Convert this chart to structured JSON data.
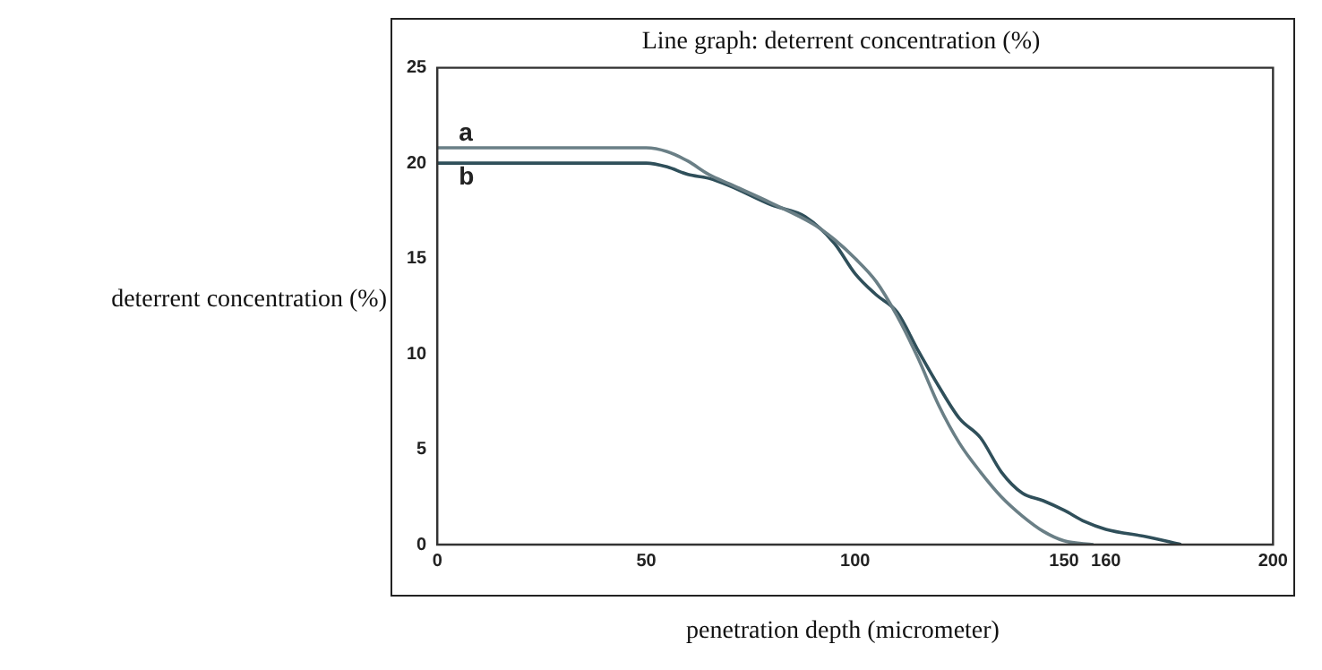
{
  "chart_data": {
    "type": "line",
    "title": "Line graph: deterrent concentration (%)",
    "xlabel": "penetration depth (micrometer)",
    "ylabel": "deterrent concentration (%)",
    "xlim": [
      0,
      200
    ],
    "xticks": [
      0,
      50,
      100,
      150,
      160,
      200
    ],
    "ylim": [
      0,
      25
    ],
    "yticks": [
      0,
      5,
      10,
      15,
      20,
      25
    ],
    "grid": false,
    "legend": false,
    "marker": "none",
    "line_style": "solid",
    "series": [
      {
        "name": "a",
        "color": "#6a7f86",
        "x": [
          0,
          45,
          50,
          55,
          60,
          65,
          70,
          80,
          90,
          95,
          100,
          105,
          110,
          115,
          120,
          125,
          130,
          135,
          140,
          145,
          150,
          157
        ],
        "values": [
          20.8,
          20.8,
          20.8,
          20.6,
          20.1,
          19.4,
          18.9,
          17.9,
          16.8,
          16.0,
          15.0,
          13.8,
          12.0,
          9.8,
          7.3,
          5.3,
          3.8,
          2.5,
          1.5,
          0.7,
          0.2,
          0
        ]
      },
      {
        "name": "b",
        "color": "#2f4f5a",
        "x": [
          0,
          50,
          55,
          60,
          65,
          70,
          80,
          88,
          95,
          100,
          105,
          110,
          115,
          120,
          125,
          130,
          135,
          140,
          145,
          150,
          155,
          160,
          170,
          178
        ],
        "values": [
          20,
          20,
          19.8,
          19.4,
          19.2,
          18.8,
          17.8,
          17.2,
          15.8,
          14.2,
          13.1,
          12.2,
          10.2,
          8.3,
          6.6,
          5.6,
          3.8,
          2.7,
          2.3,
          1.8,
          1.2,
          0.8,
          0.4,
          0
        ]
      }
    ]
  }
}
